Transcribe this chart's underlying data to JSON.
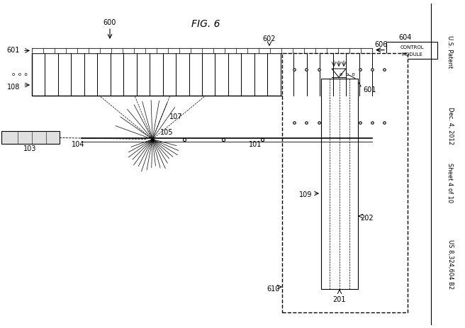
{
  "bg_color": "#ffffff",
  "title": "FIG. 6",
  "right_texts": [
    "U.S. Patent",
    "Dec. 4, 2012",
    "Sheet 4 of 10",
    "US 8,324,604 B2"
  ]
}
